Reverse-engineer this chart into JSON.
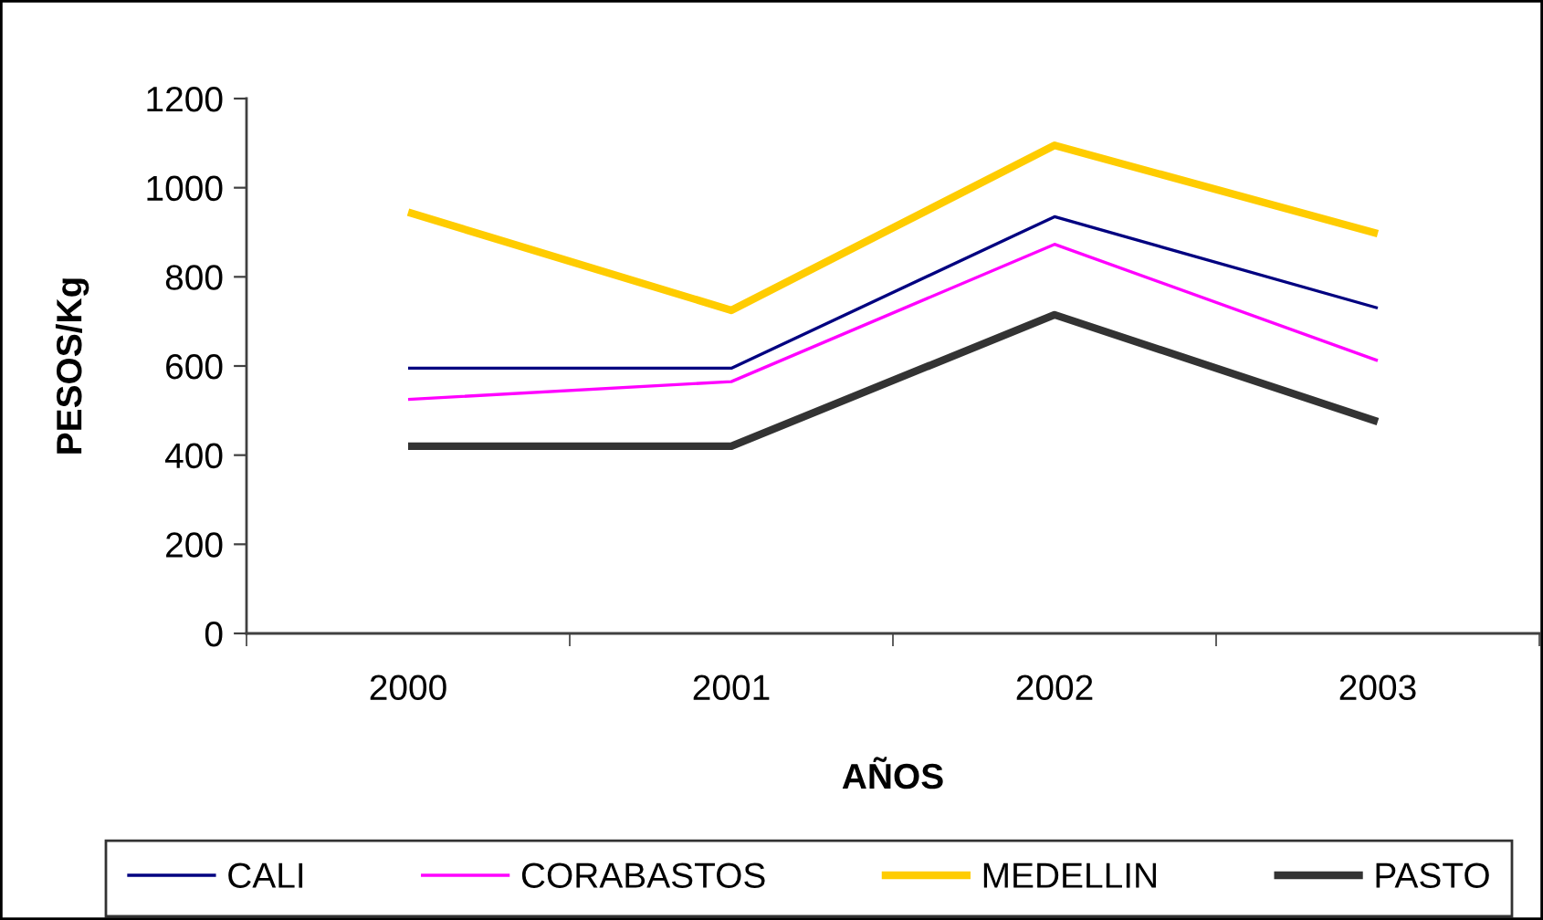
{
  "chart_data": {
    "type": "line",
    "xlabel": "AÑOS",
    "ylabel": "PESOS/Kg",
    "categories": [
      "2000",
      "2001",
      "2002",
      "2003"
    ],
    "series": [
      {
        "name": "CALI",
        "color": "#000080",
        "values": [
          595,
          595,
          935,
          730
        ]
      },
      {
        "name": "CORABASTOS",
        "color": "#ff00ff",
        "values": [
          525,
          565,
          873,
          612
        ]
      },
      {
        "name": "MEDELLIN",
        "color": "#ffcc00",
        "values": [
          945,
          725,
          1095,
          897
        ]
      },
      {
        "name": "PASTO",
        "color": "#333333",
        "values": [
          420,
          420,
          715,
          475
        ]
      }
    ],
    "ylim": [
      0,
      1200
    ],
    "yticks": [
      0,
      200,
      400,
      600,
      800,
      1000,
      1200
    ],
    "grid": false,
    "legend": "bottom",
    "line_style": "solid"
  }
}
